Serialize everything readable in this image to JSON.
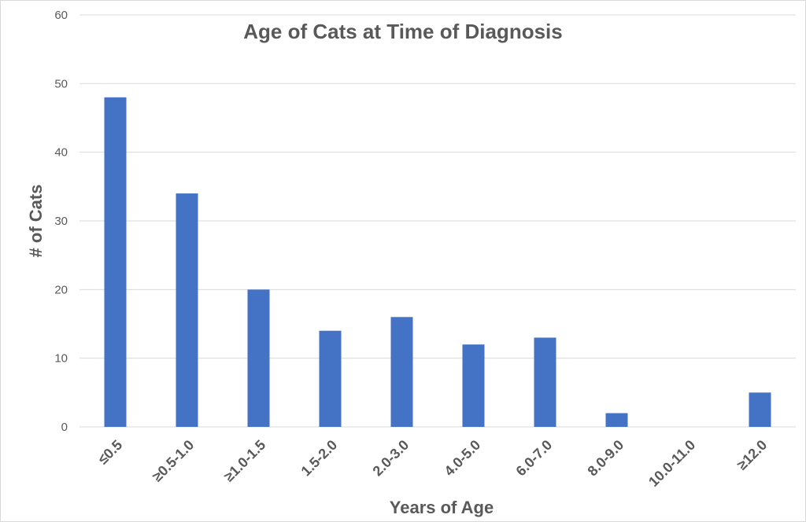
{
  "chart_data": {
    "type": "bar",
    "title": "Age of Cats at Time of Diagnosis",
    "xlabel": "Years of Age",
    "ylabel": "# of Cats",
    "categories": [
      "≤0.5",
      "≥0.5-1.0",
      "≥1.0-1.5",
      "1.5-2.0",
      "2.0-3.0",
      "4.0-5.0",
      "6.0-7.0",
      "8.0-9.0",
      "10.0-11.0",
      "≥12.0"
    ],
    "values": [
      48,
      34,
      20,
      14,
      16,
      12,
      13,
      2,
      0,
      5
    ],
    "ylim": [
      0,
      60
    ],
    "yticks": [
      "0",
      "10",
      "20",
      "30",
      "40",
      "50",
      "60"
    ],
    "grid": true,
    "legend": "none",
    "bar_color": "#4472c4"
  }
}
